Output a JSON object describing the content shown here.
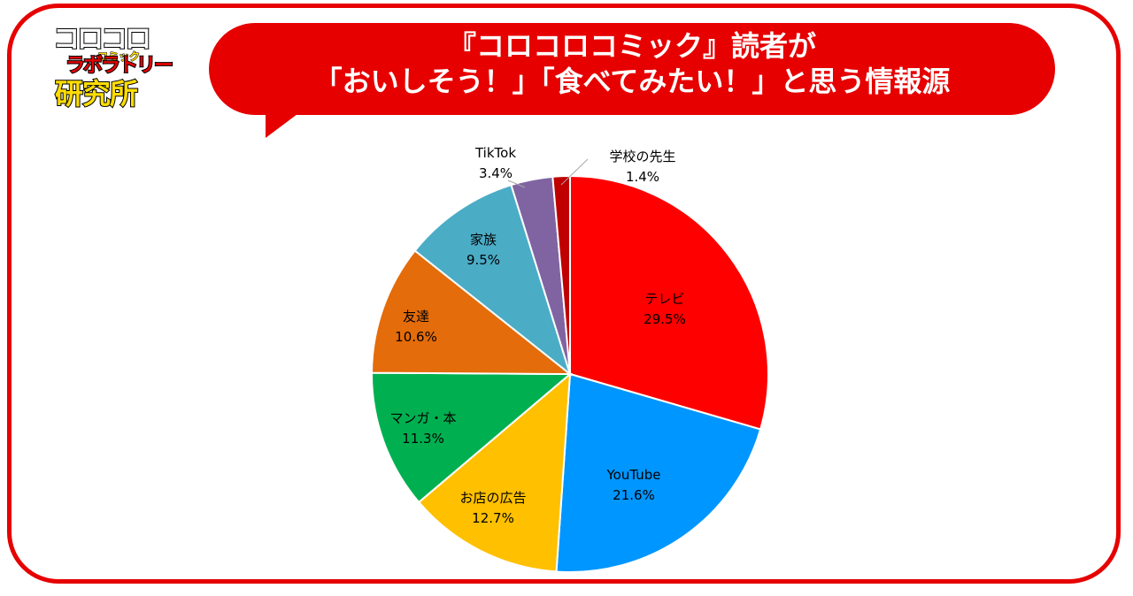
{
  "logo": {
    "line1": "コロコロ",
    "line2_small": "コミック",
    "line2": "ラボラトリー",
    "line3": "研究所"
  },
  "title": {
    "line1": "『コロコロコミック』読者が",
    "line2": "「おいしそう！」「食べてみたい！」と思う情報源"
  },
  "colors": {
    "frame": "#e60000",
    "bubble": "#e60000"
  },
  "chart_data": {
    "type": "pie",
    "title": "『コロコロコミック』読者が「おいしそう！」「食べてみたい！」と思う情報源",
    "start": "12 o'clock, clockwise",
    "slices": [
      {
        "label": "テレビ",
        "value": 29.5,
        "value_label": "29.5%",
        "color": "#ff0000"
      },
      {
        "label": "YouTube",
        "value": 21.6,
        "value_label": "21.6%",
        "color": "#0096ff"
      },
      {
        "label": "お店の広告",
        "value": 12.7,
        "value_label": "12.7%",
        "color": "#ffc000"
      },
      {
        "label": "マンガ・本",
        "value": 11.3,
        "value_label": "11.3%",
        "color": "#00b050"
      },
      {
        "label": "友達",
        "value": 10.6,
        "value_label": "10.6%",
        "color": "#e46c0a"
      },
      {
        "label": "家族",
        "value": 9.5,
        "value_label": "9.5%",
        "color": "#4bacc6"
      },
      {
        "label": "TikTok",
        "value": 3.4,
        "value_label": "3.4%",
        "color": "#8064a2"
      },
      {
        "label": "学校の先生",
        "value": 1.4,
        "value_label": "1.4%",
        "color": "#c00000"
      }
    ]
  }
}
